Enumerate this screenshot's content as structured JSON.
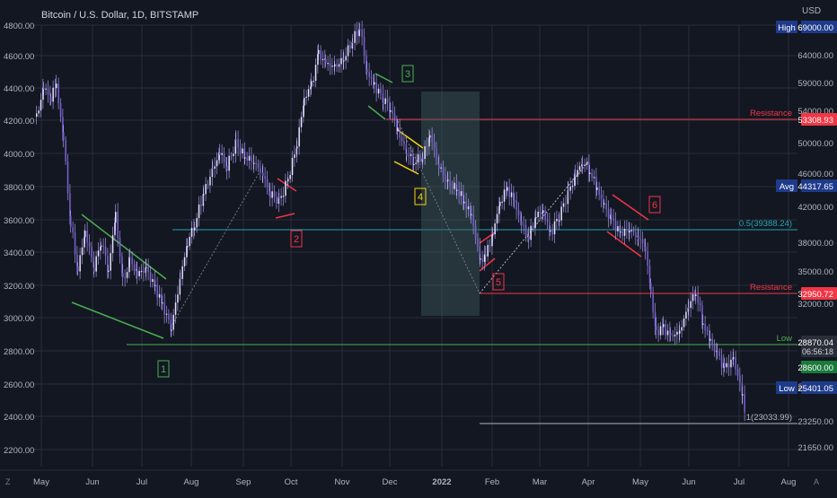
{
  "chart_data": {
    "type": "candlestick",
    "title": "Bitcoin / U.S. Dollar, 1D, BITSTAMP",
    "currency": "USD",
    "left_axis": {
      "ticks": [
        "4800.00",
        "4600.00",
        "4400.00",
        "4200.00",
        "4000.00",
        "3800.00",
        "3600.00",
        "3400.00",
        "3200.00",
        "3000.00",
        "2800.00",
        "2600.00",
        "2400.00",
        "2200.00"
      ]
    },
    "right_axis": {
      "ticks": [
        "69000.00",
        "64000.00",
        "59000.00",
        "54000.00",
        "50000.00",
        "46000.00",
        "42000.00",
        "38000.00",
        "35000.00",
        "32000.00",
        "28870.04",
        "25401.05",
        "23250.00",
        "21650.00"
      ]
    },
    "x_axis": {
      "ticks": [
        "May",
        "Jun",
        "Jul",
        "Aug",
        "Sep",
        "Oct",
        "Nov",
        "Dec",
        "2022",
        "Feb",
        "Mar",
        "Apr",
        "May",
        "Jun",
        "Jul",
        "Aug"
      ]
    },
    "price_labels": [
      {
        "key": "high",
        "tag": "High",
        "value": "69000.00",
        "color": "#1e3a8a"
      },
      {
        "key": "res1",
        "tag": "",
        "value": "53308.93",
        "color": "#f23645"
      },
      {
        "key": "avg",
        "tag": "Avg",
        "value": "44317.65",
        "color": "#1e3a8a"
      },
      {
        "key": "res2",
        "tag": "",
        "value": "32950.72",
        "color": "#f23645"
      },
      {
        "key": "last",
        "tag": "",
        "value": "28870.04",
        "sub": "06:56:18",
        "color": "#2a2e39"
      },
      {
        "key": "green",
        "tag": "",
        "value": "28600.00",
        "color": "#1b7a3a"
      },
      {
        "key": "low",
        "tag": "Low",
        "value": "25401.05",
        "color": "#1e3a8a"
      }
    ],
    "levels": [
      {
        "label": "Resistance",
        "value": 53308.93,
        "color": "#f23645"
      },
      {
        "label": "0.5(39388.24)",
        "value": 39388.24,
        "color": "#22a6b3"
      },
      {
        "label": "Resistance",
        "value": 32950.72,
        "color": "#f23645"
      },
      {
        "label": "Low",
        "value": 28600.0,
        "color": "#4caf50"
      },
      {
        "label": "1(23033.99)",
        "value": 23033.99,
        "color": "#b2b5be"
      }
    ],
    "annotations": [
      "1",
      "2",
      "3",
      "4",
      "5",
      "6"
    ],
    "bottom_controls": [
      "Z",
      "A"
    ],
    "colors": {
      "background": "#131722",
      "candle": "#7b61d6",
      "candle_wick": "#b9a8ff",
      "grid": "#2a2e39",
      "text": "#b2b5be"
    }
  }
}
